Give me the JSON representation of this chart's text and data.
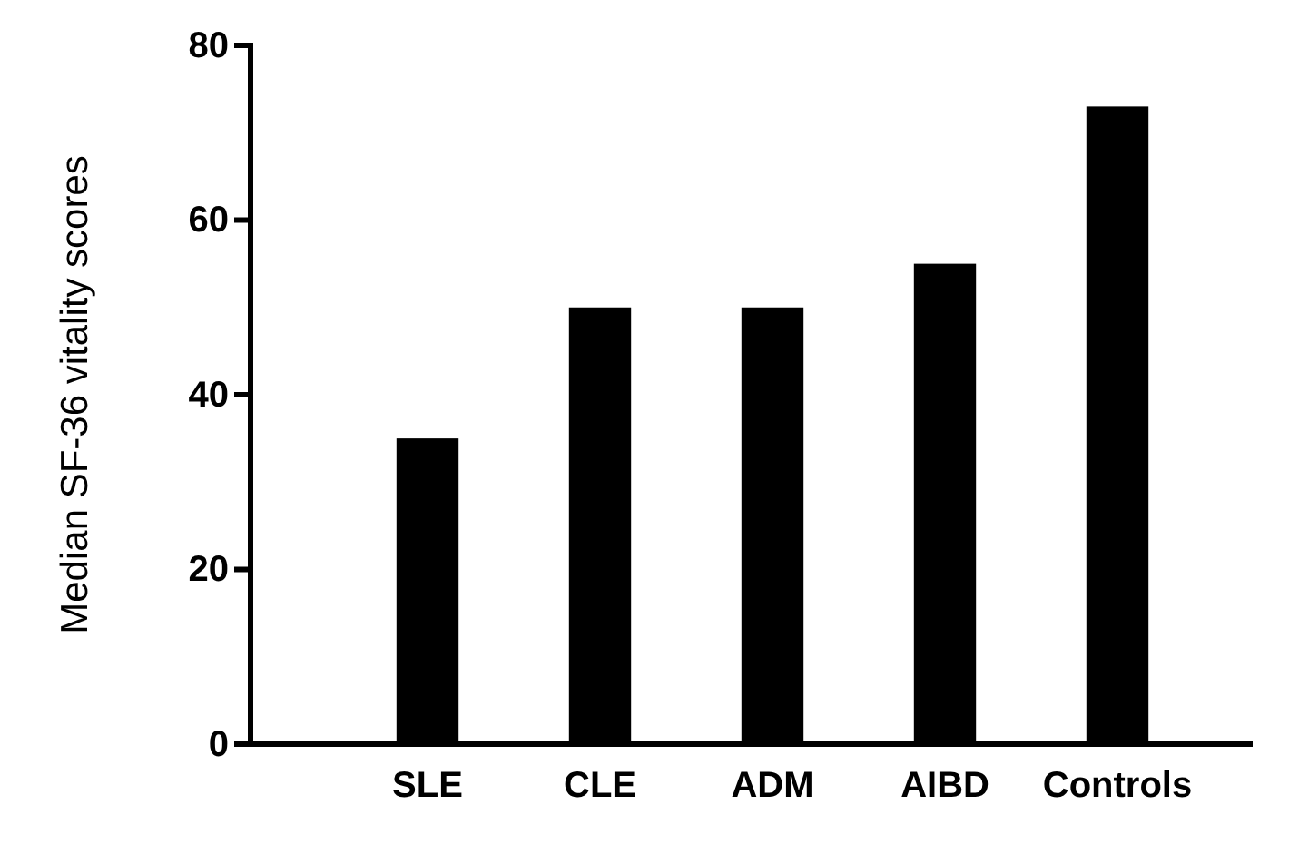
{
  "chart_data": {
    "type": "bar",
    "ylabel": "Median SF-36 vitality scores",
    "categories": [
      "SLE",
      "CLE",
      "ADM",
      "AIBD",
      "Controls"
    ],
    "values": [
      35,
      50,
      50,
      55,
      73
    ],
    "color": "#000000",
    "ylim": [
      0,
      80
    ],
    "yticks": [
      0,
      20,
      40,
      60,
      80
    ],
    "grid": false
  }
}
